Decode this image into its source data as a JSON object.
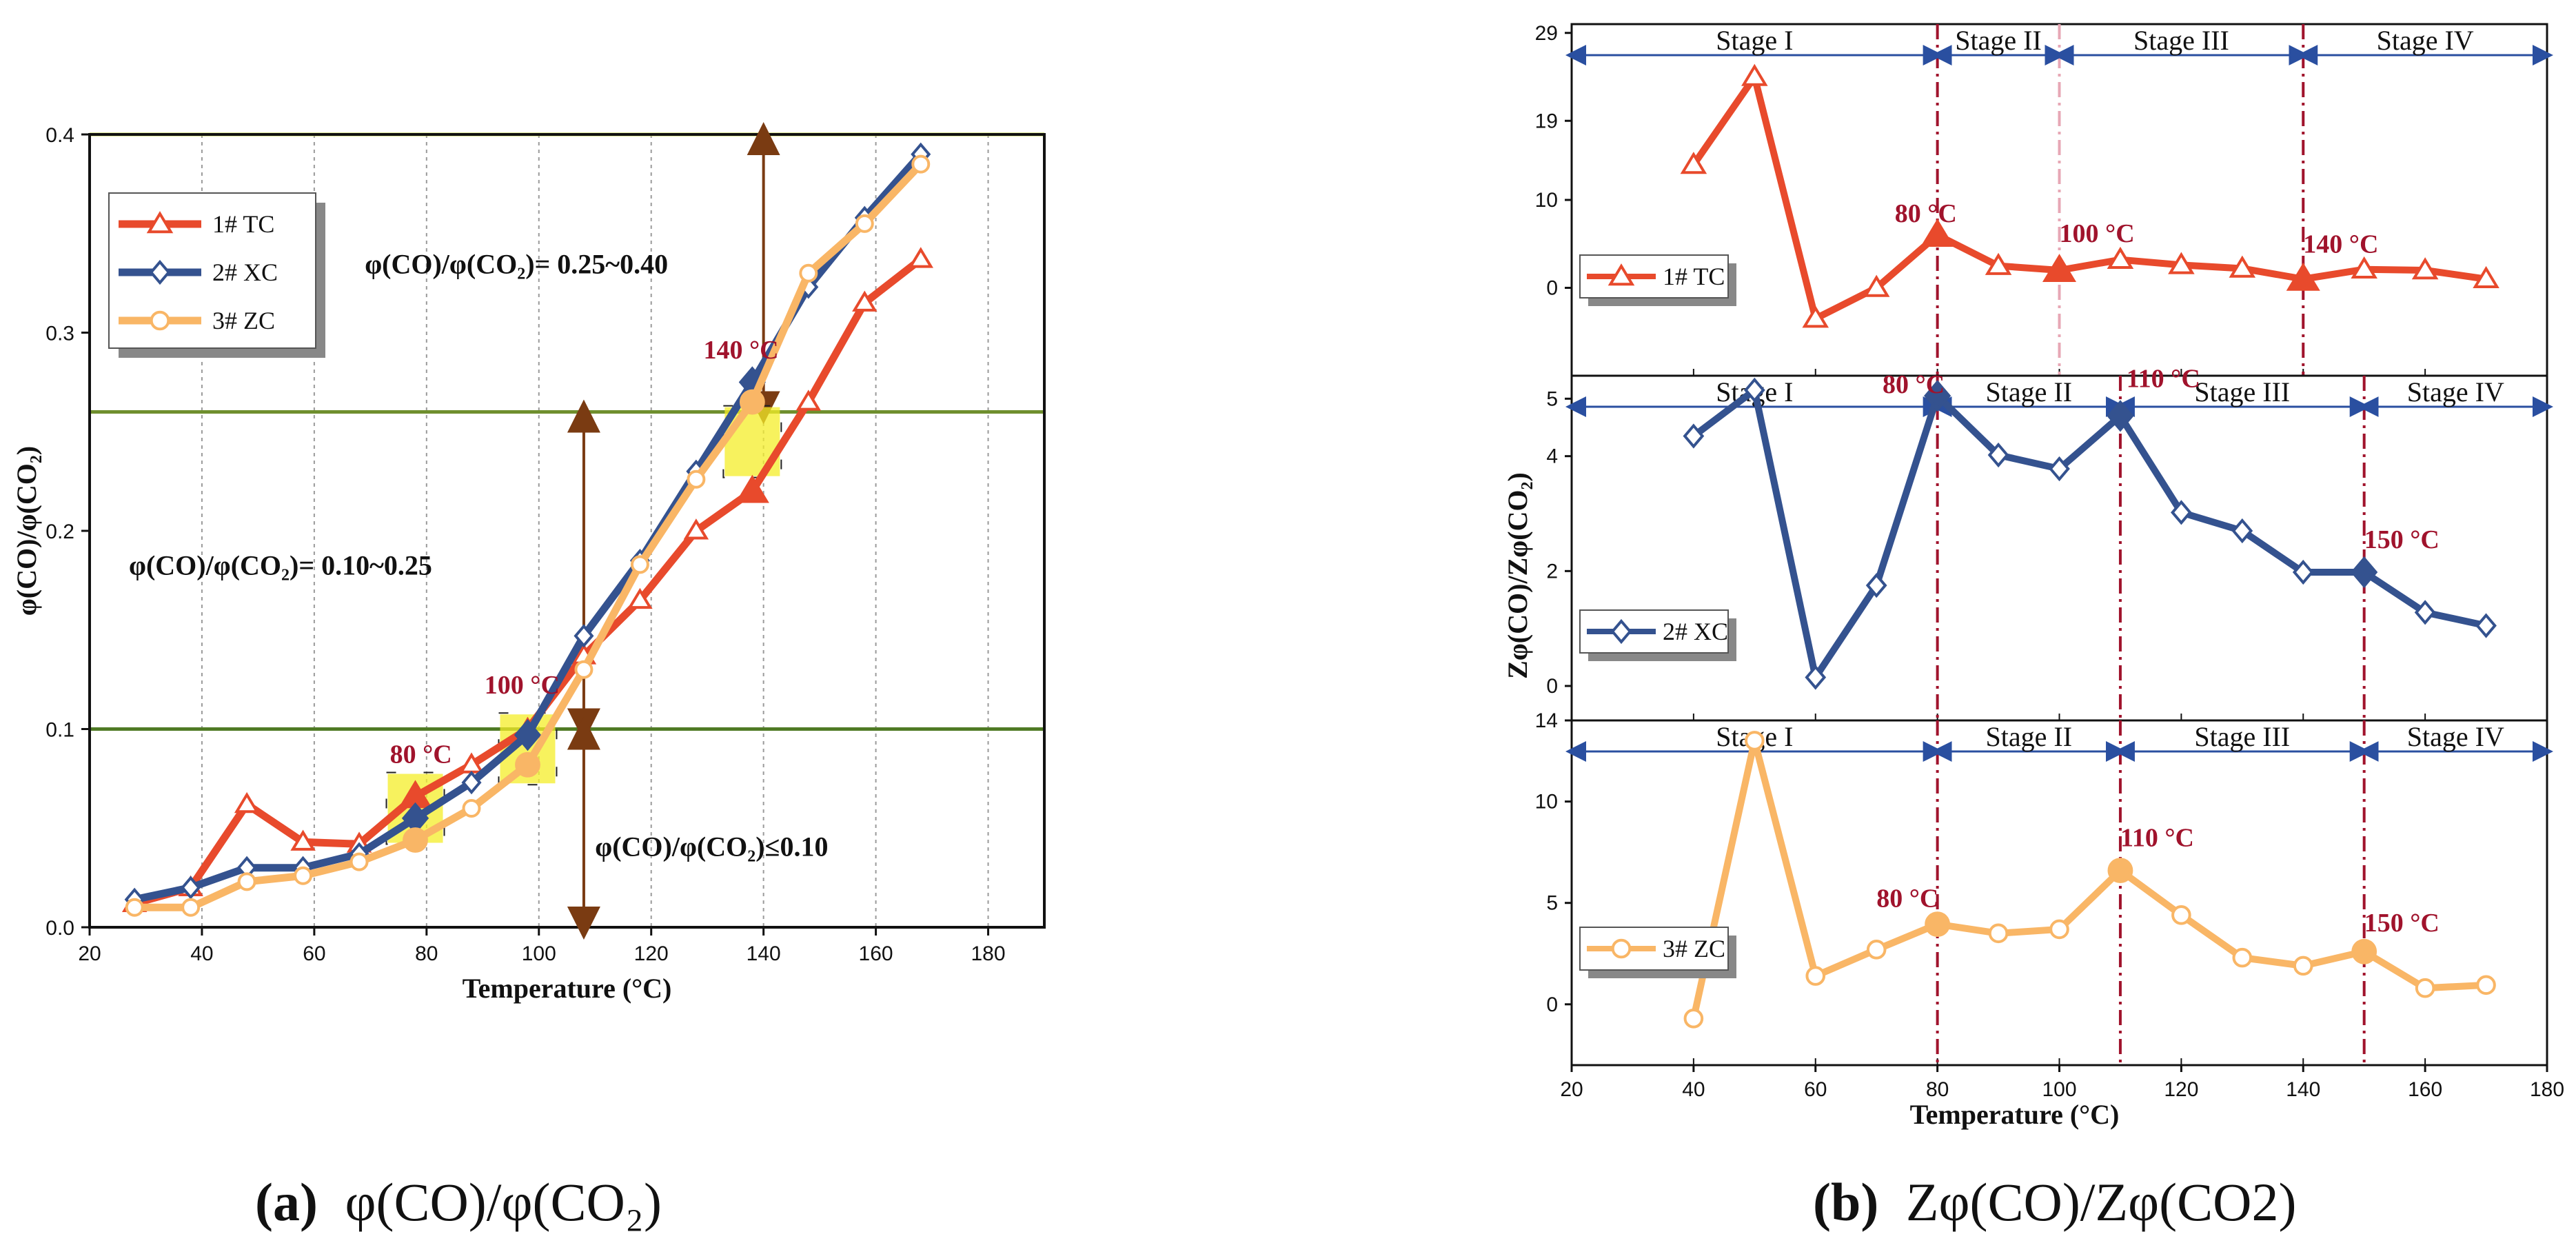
{
  "chart_data": [
    {
      "id": "a",
      "type": "line",
      "caption_prefix": "(a)",
      "caption_text": "φ(CO)/φ(CO₂)",
      "xlabel": "Temperature (°C)",
      "ylabel": "φ(CO)/φ(CO₂)",
      "xlim": [
        20,
        190
      ],
      "ylim": [
        0,
        0.4
      ],
      "xticks": [
        20,
        40,
        60,
        80,
        100,
        120,
        140,
        160,
        180
      ],
      "yticks": [
        0.0,
        0.1,
        0.2,
        0.3,
        0.4
      ],
      "ytick_labels": [
        "0.0",
        "0.1",
        "0.2",
        "0.3",
        "0.4"
      ],
      "hlines": [
        {
          "y": 0.4,
          "color": "#c2d53a"
        },
        {
          "y": 0.26,
          "color": "#6f8f2e"
        },
        {
          "y": 0.1,
          "color": "#4f7a25"
        }
      ],
      "series": [
        {
          "name": "1# TC",
          "color": "#e84a2c",
          "marker": "triangle",
          "x": [
            28,
            38,
            48,
            58,
            68,
            78,
            88,
            98,
            108,
            118,
            128,
            138,
            148,
            158,
            168
          ],
          "y": [
            0.012,
            0.02,
            0.062,
            0.043,
            0.042,
            0.066,
            0.082,
            0.1,
            0.137,
            0.165,
            0.2,
            0.22,
            0.265,
            0.315,
            0.337
          ]
        },
        {
          "name": "2# XC",
          "color": "#34528f",
          "marker": "diamond",
          "x": [
            28,
            38,
            48,
            58,
            68,
            78,
            88,
            98,
            108,
            118,
            128,
            138,
            148,
            158,
            168
          ],
          "y": [
            0.014,
            0.02,
            0.03,
            0.03,
            0.037,
            0.055,
            0.073,
            0.097,
            0.147,
            0.185,
            0.23,
            0.275,
            0.323,
            0.358,
            0.39
          ]
        },
        {
          "name": "3# ZC",
          "color": "#f9b666",
          "marker": "circle",
          "x": [
            28,
            38,
            48,
            58,
            68,
            78,
            88,
            98,
            108,
            118,
            128,
            138,
            148,
            158,
            168
          ],
          "y": [
            0.01,
            0.01,
            0.023,
            0.026,
            0.033,
            0.044,
            0.06,
            0.082,
            0.13,
            0.183,
            0.226,
            0.265,
            0.33,
            0.355,
            0.385
          ]
        }
      ],
      "highlight_points": [
        {
          "series": 0,
          "index": 5,
          "filled": true
        },
        {
          "series": 1,
          "index": 5,
          "filled": true
        },
        {
          "series": 2,
          "index": 5,
          "filled": true
        },
        {
          "series": 1,
          "index": 7,
          "filled": true
        },
        {
          "series": 2,
          "index": 7,
          "filled": true
        },
        {
          "series": 0,
          "index": 11,
          "filled": true
        },
        {
          "series": 1,
          "index": 11,
          "filled": true
        },
        {
          "series": 2,
          "index": 11,
          "filled": true
        }
      ],
      "annotations": [
        {
          "text": "80 °C",
          "x": 79,
          "y": 0.083,
          "color": "#a0132c"
        },
        {
          "text": "100 °C",
          "x": 97,
          "y": 0.118,
          "color": "#a0132c"
        },
        {
          "text": "140 °C",
          "x": 136,
          "y": 0.287,
          "color": "#a0132c"
        }
      ],
      "range_labels": [
        {
          "text": "φ(CO)/φ(CO₂)= 0.25~0.40",
          "x": 69,
          "y": 0.33
        },
        {
          "text": "φ(CO)/φ(CO₂)= 0.10~0.25",
          "x": 27,
          "y": 0.178
        },
        {
          "text": "φ(CO)/φ(CO₂)≤0.10",
          "x": 110,
          "y": 0.036
        }
      ],
      "arrows": [
        {
          "x": 140,
          "y1": 0.26,
          "y2": 0.4
        },
        {
          "x": 108,
          "y1": 0.1,
          "y2": 0.26
        },
        {
          "x": 108,
          "y1": 0.0,
          "y2": 0.1
        }
      ]
    },
    {
      "id": "b",
      "type": "line",
      "caption_prefix": "(b)",
      "caption_text": "Zφ(CO)/Zφ(CO2)",
      "xlabel": "Temperature (°C)",
      "ylabel": "Zφ(CO)/Zφ(CO₂)",
      "xlim": [
        20,
        180
      ],
      "xticks": [
        20,
        40,
        60,
        80,
        100,
        120,
        140,
        160,
        180
      ],
      "panels": [
        {
          "name": "1# TC",
          "color": "#e84a2c",
          "marker": "triangle",
          "ylim": [
            -10,
            30
          ],
          "yticks": [
            0,
            10,
            19,
            29
          ],
          "x": [
            40,
            50,
            60,
            70,
            80,
            90,
            100,
            110,
            120,
            130,
            140,
            150,
            160,
            170
          ],
          "y": [
            14,
            24,
            -3.5,
            0,
            6,
            2.5,
            2,
            3.2,
            2.6,
            2.2,
            1,
            2.1,
            2,
            1
          ],
          "filled_x": [
            80,
            100,
            140
          ],
          "stages": [
            "Stage I",
            "Stage II",
            "Stage III",
            "Stage IV"
          ],
          "stage_bounds": [
            20,
            80,
            100,
            140,
            180
          ],
          "temp_labels": [
            {
              "text": "80 °C",
              "x": 73,
              "y": 7.5
            },
            {
              "text": "100 °C",
              "x": 100,
              "y": 5.2
            },
            {
              "text": "140 °C",
              "x": 140,
              "y": 4
            }
          ]
        },
        {
          "name": "2# XC",
          "color": "#34528f",
          "marker": "diamond",
          "ylim": [
            -0.6,
            5.4
          ],
          "yticks": [
            0,
            2,
            4,
            5
          ],
          "x": [
            40,
            50,
            60,
            70,
            80,
            90,
            100,
            110,
            120,
            130,
            140,
            150,
            160,
            170
          ],
          "y": [
            4.35,
            5.15,
            0.15,
            1.75,
            5.05,
            4.02,
            3.78,
            4.7,
            3.02,
            2.7,
            1.98,
            1.98,
            1.28,
            1.05
          ],
          "filled_x": [
            80,
            110,
            150
          ],
          "stages": [
            "Stage I",
            "Stage II",
            "Stage III",
            "Stage IV"
          ],
          "stage_bounds": [
            20,
            80,
            110,
            150,
            180
          ],
          "temp_labels": [
            {
              "text": "80 °C",
              "x": 71,
              "y": 5.1
            },
            {
              "text": "110 °C",
              "x": 111,
              "y": 5.2
            },
            {
              "text": "150 °C",
              "x": 150,
              "y": 2.4
            }
          ]
        },
        {
          "name": "3# ZC",
          "color": "#f9b666",
          "marker": "circle",
          "ylim": [
            -3,
            14
          ],
          "yticks": [
            0,
            5,
            10,
            14
          ],
          "x": [
            40,
            50,
            60,
            70,
            80,
            90,
            100,
            110,
            120,
            130,
            140,
            150,
            160,
            170
          ],
          "y": [
            -0.7,
            13,
            1.4,
            2.7,
            3.95,
            3.5,
            3.7,
            6.6,
            4.4,
            2.3,
            1.9,
            2.6,
            0.8,
            0.95
          ],
          "filled_x": [
            80,
            110,
            150
          ],
          "stages": [
            "Stage I",
            "Stage II",
            "Stage III",
            "Stage IV"
          ],
          "stage_bounds": [
            20,
            80,
            110,
            150,
            180
          ],
          "temp_labels": [
            {
              "text": "80 °C",
              "x": 70,
              "y": 4.8
            },
            {
              "text": "110 °C",
              "x": 110,
              "y": 7.8
            },
            {
              "text": "150 °C",
              "x": 150,
              "y": 3.6
            }
          ]
        }
      ]
    }
  ]
}
